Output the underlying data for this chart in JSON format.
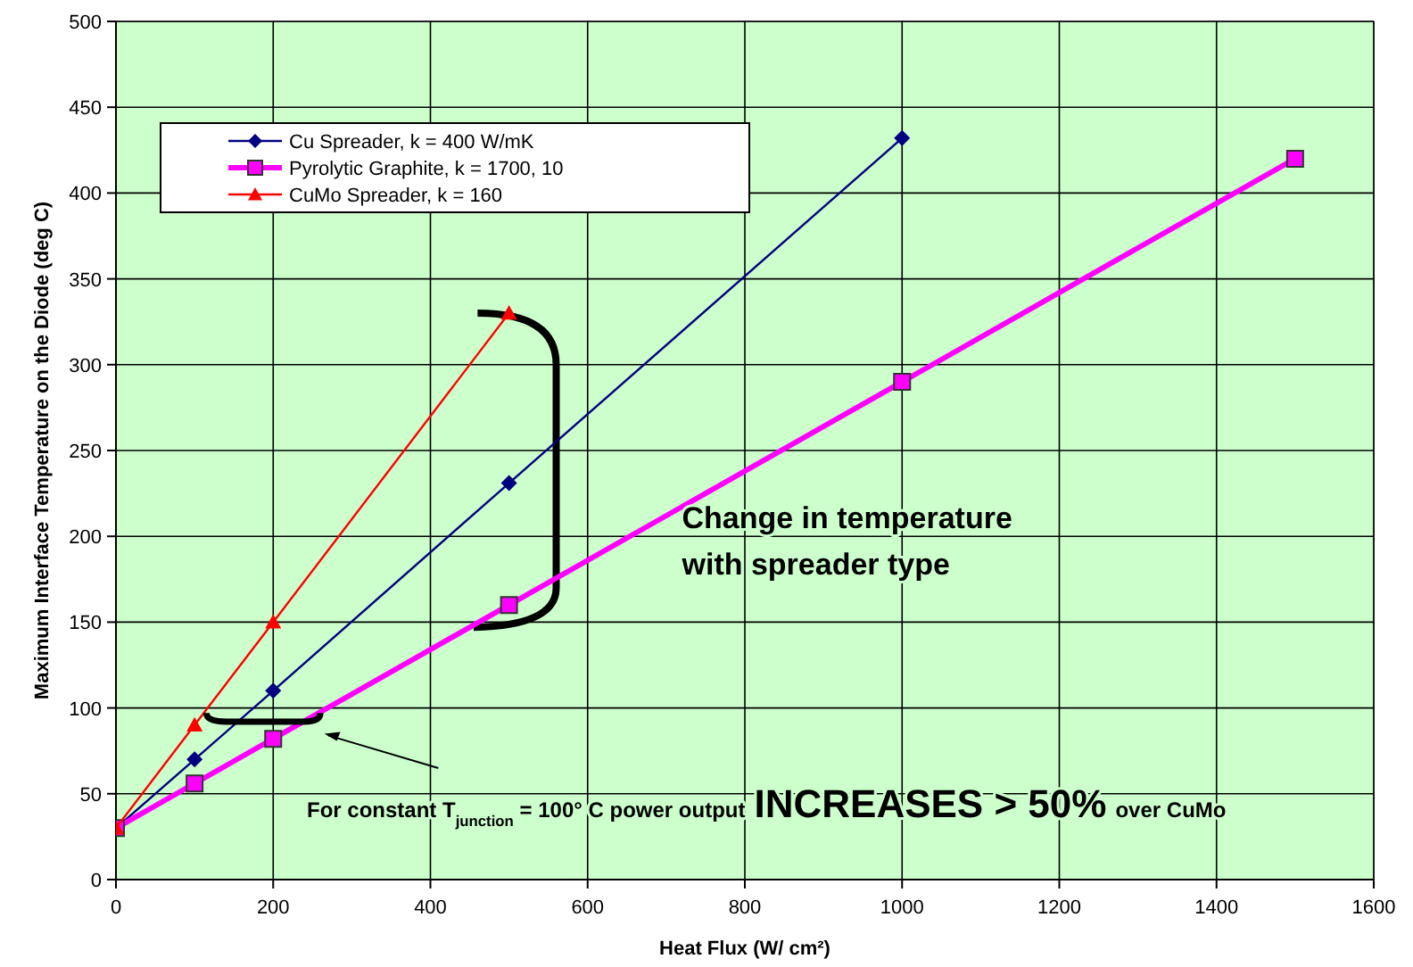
{
  "chart_data": {
    "type": "line",
    "xlabel": "Heat Flux (W/ cm²)",
    "ylabel": "Maximum Interface Temperature on the Diode (deg C)",
    "xlim": [
      0,
      1600
    ],
    "xticks": [
      0,
      200,
      400,
      600,
      800,
      1000,
      1200,
      1400,
      1600
    ],
    "ylim": [
      0,
      500
    ],
    "yticks": [
      0,
      50,
      100,
      150,
      200,
      250,
      300,
      350,
      400,
      450,
      500
    ],
    "grid": true,
    "legend": "top left",
    "series": [
      {
        "name": "Cu Spreader, k = 400 W/mK",
        "color": "#000080",
        "marker": "diamond",
        "x": [
          0,
          100,
          200,
          500,
          1000
        ],
        "values": [
          30,
          70,
          110,
          231,
          432
        ]
      },
      {
        "name": "Pyrolytic Graphite, k = 1700, 10",
        "color": "#ff00ff",
        "marker": "square",
        "x": [
          0,
          100,
          200,
          500,
          1000,
          1500
        ],
        "values": [
          30,
          56,
          82,
          160,
          290,
          420
        ]
      },
      {
        "name": "CuMo Spreader, k = 160",
        "color": "#ff0000",
        "marker": "triangle",
        "x": [
          0,
          100,
          200,
          500
        ],
        "values": [
          30,
          90,
          150,
          330
        ]
      }
    ],
    "annotations": [
      "Change in temperature",
      "with spreader type",
      "For constant T$_{junction}$ = 100° C power output",
      "INCREASES > 50%",
      "over CuMo"
    ]
  }
}
